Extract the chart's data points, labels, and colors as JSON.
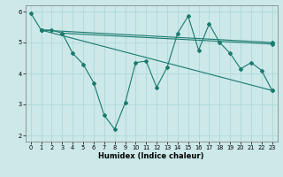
{
  "xlabel": "Humidex (Indice chaleur)",
  "bg_color": "#cce8e8",
  "grid_color": "#aad4d4",
  "line_color": "#1a7a6e",
  "line1_x": [
    0,
    1,
    2,
    3,
    4,
    5,
    6,
    7,
    8,
    9,
    10,
    11,
    12,
    13,
    14,
    15,
    16,
    17,
    18,
    19,
    20,
    21,
    22,
    23
  ],
  "line1_y": [
    5.95,
    5.4,
    5.4,
    5.3,
    4.65,
    4.3,
    3.7,
    2.65,
    2.2,
    3.05,
    4.35,
    4.4,
    3.55,
    4.2,
    5.3,
    5.85,
    4.75,
    5.6,
    5.0,
    4.65,
    4.15,
    4.35,
    4.1,
    3.45
  ],
  "line2_x": [
    1,
    23
  ],
  "line2_y": [
    5.4,
    5.0
  ],
  "line3_x": [
    3,
    23
  ],
  "line3_y": [
    5.3,
    4.95
  ],
  "line4_x": [
    1,
    23
  ],
  "line4_y": [
    5.4,
    3.45
  ],
  "xlim": [
    -0.5,
    23.5
  ],
  "ylim": [
    1.8,
    6.2
  ],
  "yticks": [
    2,
    3,
    4,
    5,
    6
  ],
  "xticks": [
    0,
    1,
    2,
    3,
    4,
    5,
    6,
    7,
    8,
    9,
    10,
    11,
    12,
    13,
    14,
    15,
    16,
    17,
    18,
    19,
    20,
    21,
    22,
    23
  ],
  "xlabel_fontsize": 6.0,
  "tick_fontsize": 4.8,
  "lw": 0.8,
  "ms": 2.0
}
